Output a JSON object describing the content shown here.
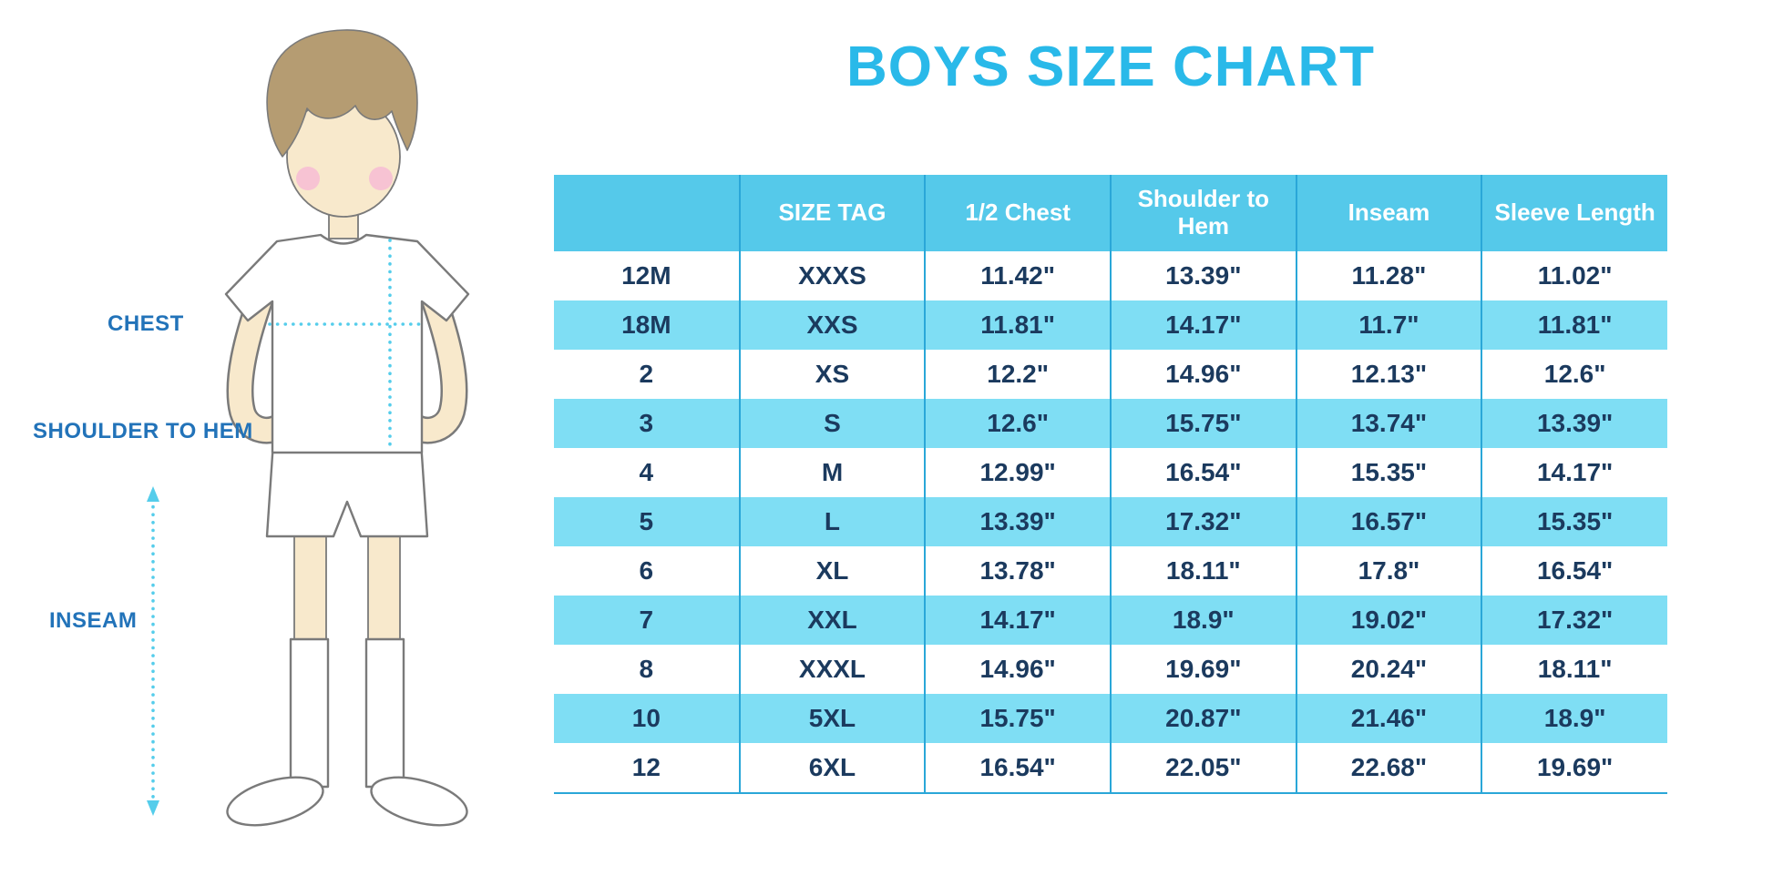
{
  "title": "BOYS SIZE CHART",
  "figure": {
    "chest_label": "CHEST",
    "shoulder_to_hem_label": "SHOULDER TO HEM",
    "inseam_label": "INSEAM"
  },
  "colors": {
    "title": "#29b9e9",
    "header_bg": "#55c9ea",
    "header_text": "#ffffff",
    "stripe_bg": "#7fdef4",
    "grid_line": "#2aa7d8",
    "cell_text": "#1b3a5e",
    "label_text": "#2273b9",
    "measure_line": "#55cdeb",
    "skin": "#f8e9cc",
    "hair": "#b59c72",
    "cheek": "#f7c3d3",
    "outline": "#7a7a7a",
    "garment": "#ffffff"
  },
  "chart_data": {
    "type": "table",
    "title": "BOYS SIZE CHART",
    "columns": [
      "",
      "SIZE TAG",
      "1/2 Chest",
      "Shoulder to Hem",
      "Inseam",
      "Sleeve Length"
    ],
    "rows": [
      [
        "12M",
        "XXXS",
        "11.42\"",
        "13.39\"",
        "11.28\"",
        "11.02\""
      ],
      [
        "18M",
        "XXS",
        "11.81\"",
        "14.17\"",
        "11.7\"",
        "11.81\""
      ],
      [
        "2",
        "XS",
        "12.2\"",
        "14.96\"",
        "12.13\"",
        "12.6\""
      ],
      [
        "3",
        "S",
        "12.6\"",
        "15.75\"",
        "13.74\"",
        "13.39\""
      ],
      [
        "4",
        "M",
        "12.99\"",
        "16.54\"",
        "15.35\"",
        "14.17\""
      ],
      [
        "5",
        "L",
        "13.39\"",
        "17.32\"",
        "16.57\"",
        "15.35\""
      ],
      [
        "6",
        "XL",
        "13.78\"",
        "18.11\"",
        "17.8\"",
        "16.54\""
      ],
      [
        "7",
        "XXL",
        "14.17\"",
        "18.9\"",
        "19.02\"",
        "17.32\""
      ],
      [
        "8",
        "XXXL",
        "14.96\"",
        "19.69\"",
        "20.24\"",
        "18.11\""
      ],
      [
        "10",
        "5XL",
        "15.75\"",
        "20.87\"",
        "21.46\"",
        "18.9\""
      ],
      [
        "12",
        "6XL",
        "16.54\"",
        "22.05\"",
        "22.68\"",
        "19.69\""
      ]
    ]
  }
}
